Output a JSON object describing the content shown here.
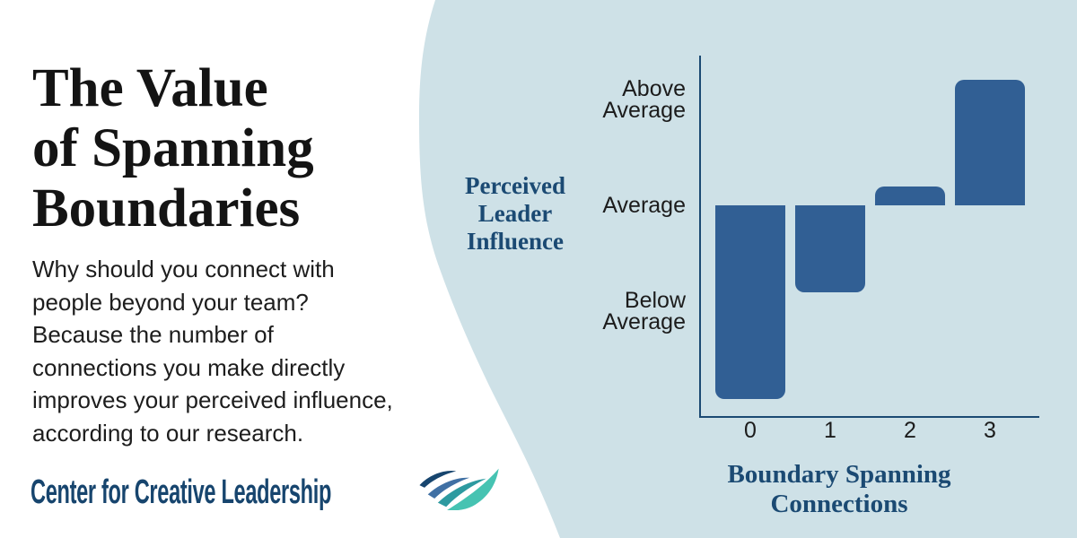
{
  "page": {
    "background_color": "#ffffff",
    "panel_color": "#cee1e7",
    "accent_navy": "#1b4a73"
  },
  "left_panel": {
    "title": "The Value\nof Spanning\nBoundaries",
    "body": "Why should you connect with\npeople beyond your team?\nBecause the number of\nconnections you make directly\nimproves your perceived influence,\naccording to our research.",
    "logo": {
      "text": "Center for Creative Leadership",
      "text_color": "#17456e",
      "swoosh_icon": "ccl-swoosh",
      "swoosh_colors": [
        "#17456e",
        "#4070a4",
        "#2d9aa0",
        "#46c3b2"
      ]
    }
  },
  "chart_data": {
    "type": "bar",
    "title": "",
    "xlabel": "Boundary Spanning\nConnections",
    "ylabel": "Perceived\nLeader\nInfluence",
    "categories": [
      "0",
      "1",
      "2",
      "3"
    ],
    "values": [
      -1.83,
      -0.82,
      0.18,
      1.19
    ],
    "value_unit": "relative to Average (qualitative scale)",
    "baseline": 0,
    "y_ticks": [
      {
        "label": "Above\nAverage",
        "value": 1
      },
      {
        "label": "Average",
        "value": 0
      },
      {
        "label": "Below\nAverage",
        "value": -1
      }
    ],
    "ylim": [
      -2.05,
      1.45
    ],
    "grid": false,
    "legend": null,
    "bar_color": "#315f94",
    "axis_color": "#1b4a73",
    "tick_text_color": "#1c1c1c"
  }
}
